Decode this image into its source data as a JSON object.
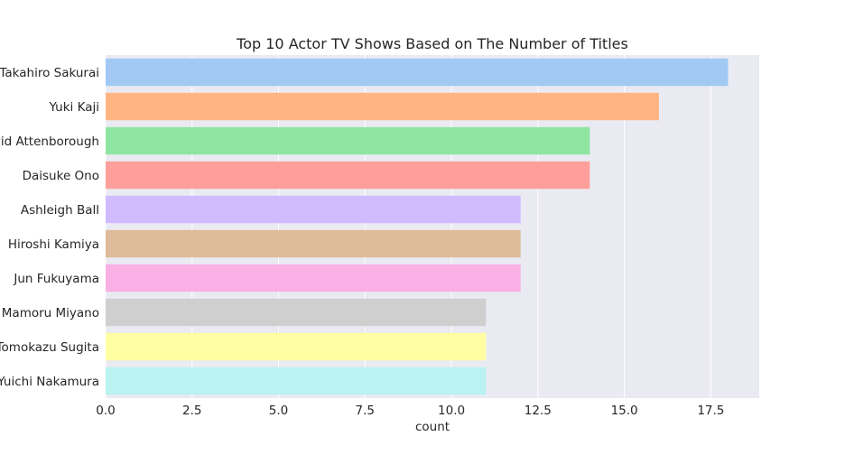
{
  "chart_data": {
    "type": "bar",
    "orientation": "horizontal",
    "title": "Top 10 Actor TV Shows Based on The Number of Titles",
    "xlabel": "count",
    "ylabel": "",
    "xlim": [
      0,
      18.9
    ],
    "xticks": [
      "0.0",
      "2.5",
      "5.0",
      "7.5",
      "10.0",
      "12.5",
      "15.0",
      "17.5"
    ],
    "grid": true,
    "categories": [
      "Takahiro Sakurai",
      "Yuki Kaji",
      "David Attenborough",
      "Daisuke Ono",
      "Ashleigh Ball",
      "Hiroshi Kamiya",
      "Jun Fukuyama",
      "Mamoru Miyano",
      "Tomokazu Sugita",
      "Yuichi Nakamura"
    ],
    "values": [
      18,
      16,
      14,
      14,
      12,
      12,
      12,
      11,
      11,
      11
    ],
    "colors": [
      "#a1c9f4",
      "#ffb482",
      "#8de5a1",
      "#ff9f9b",
      "#d0bbff",
      "#debb9b",
      "#fab0e4",
      "#cfcfcf",
      "#fffea3",
      "#b9f2f0"
    ]
  }
}
